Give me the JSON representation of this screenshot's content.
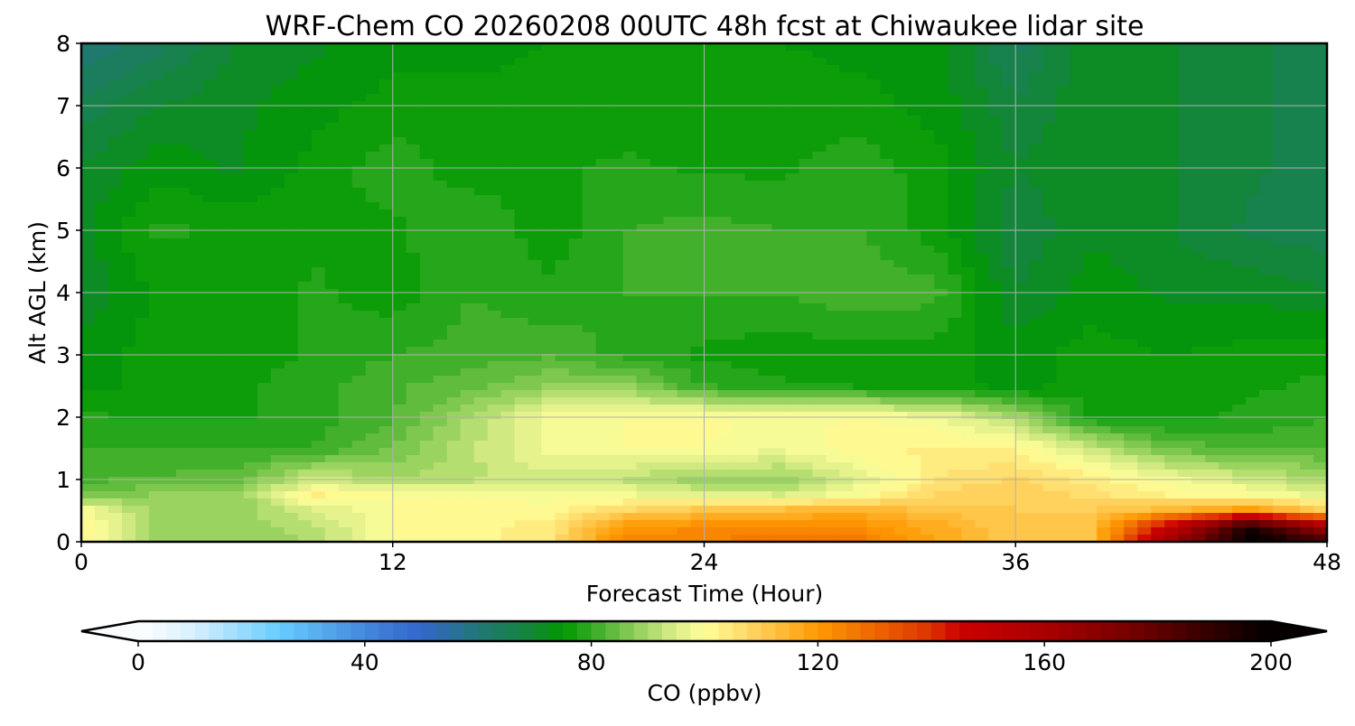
{
  "chart_data": {
    "type": "heatmap",
    "title": "WRF-Chem CO  20260208 00UTC 48h fcst at Chiwaukee lidar site",
    "xlabel": "Forecast Time (Hour)",
    "ylabel": "Alt AGL (km)",
    "xlim": [
      0,
      48
    ],
    "ylim": [
      0,
      8
    ],
    "xticks": [
      "0",
      "12",
      "24",
      "36",
      "48"
    ],
    "yticks": [
      "0",
      "1",
      "2",
      "3",
      "4",
      "5",
      "6",
      "7",
      "8"
    ],
    "grid": true,
    "x": [
      0,
      3,
      6,
      9,
      12,
      15,
      18,
      21,
      24,
      27,
      30,
      33,
      36,
      39,
      42,
      45,
      48
    ],
    "y": [
      0,
      0.25,
      0.5,
      0.75,
      1,
      1.5,
      2,
      2.5,
      3,
      4,
      5,
      6,
      7,
      8
    ],
    "z": [
      [
        104,
        88,
        88,
        90,
        100,
        101,
        105,
        125,
        125,
        127,
        126,
        118,
        110,
        112,
        165,
        200,
        190
      ],
      [
        102,
        88,
        88,
        92,
        100,
        101,
        104,
        120,
        122,
        123,
        122,
        116,
        110,
        112,
        150,
        195,
        160
      ],
      [
        100,
        88,
        88,
        95,
        100,
        101,
        101,
        108,
        112,
        114,
        115,
        112,
        110,
        110,
        115,
        120,
        110
      ],
      [
        85,
        88,
        88,
        103,
        100,
        100,
        99,
        98,
        96,
        95,
        100,
        108,
        110,
        106,
        102,
        100,
        96
      ],
      [
        82,
        83,
        84,
        94,
        90,
        92,
        94,
        92,
        88,
        88,
        95,
        105,
        108,
        104,
        98,
        94,
        90
      ],
      [
        80,
        80,
        80,
        80,
        85,
        92,
        98,
        100,
        100,
        98,
        102,
        103,
        102,
        93,
        84,
        82,
        82
      ],
      [
        78,
        77,
        77,
        79,
        82,
        90,
        99,
        100,
        101,
        99,
        100,
        98,
        90,
        77,
        77,
        78,
        80
      ],
      [
        74,
        76,
        77,
        79,
        82,
        84,
        88,
        88,
        80,
        78,
        77,
        76,
        74,
        76,
        76,
        77,
        78
      ],
      [
        74,
        76,
        76,
        78,
        80,
        81,
        82,
        79,
        77,
        76,
        76,
        76,
        74,
        76,
        75,
        76,
        77
      ],
      [
        70,
        76,
        75,
        78,
        76,
        80,
        78,
        80,
        80,
        80,
        82,
        81,
        70,
        74,
        72,
        72,
        70
      ],
      [
        72,
        78,
        77,
        77,
        77,
        80,
        76,
        80,
        81,
        80,
        80,
        76,
        68,
        72,
        70,
        67,
        66
      ],
      [
        70,
        74,
        72,
        76,
        79,
        76,
        77,
        78,
        77,
        77,
        79,
        76,
        70,
        72,
        70,
        68,
        66
      ],
      [
        66,
        70,
        72,
        74,
        76,
        76,
        76,
        76,
        76,
        77,
        76,
        74,
        68,
        72,
        70,
        68,
        66
      ],
      [
        60,
        64,
        70,
        72,
        74,
        74,
        75,
        75,
        75,
        75,
        74,
        74,
        64,
        72,
        70,
        68,
        66
      ]
    ],
    "colorbar": {
      "label": "CO  (ppbv)",
      "range": [
        0,
        200
      ],
      "step": 2.5,
      "ticks": [
        "0",
        "40",
        "80",
        "120",
        "160",
        "200"
      ],
      "extend": "both",
      "stops": [
        [
          0,
          "#ffffff"
        ],
        [
          10,
          "#d6f0ff"
        ],
        [
          25,
          "#66ccff"
        ],
        [
          40,
          "#4488dd"
        ],
        [
          50,
          "#3366cc"
        ],
        [
          60,
          "#227777"
        ],
        [
          70,
          "#118833"
        ],
        [
          75,
          "#009900"
        ],
        [
          80,
          "#33aa22"
        ],
        [
          87,
          "#88cc55"
        ],
        [
          95,
          "#ddee88"
        ],
        [
          100,
          "#ffff99"
        ],
        [
          110,
          "#ffcc55"
        ],
        [
          120,
          "#ff9900"
        ],
        [
          130,
          "#ee6600"
        ],
        [
          140,
          "#dd3300"
        ],
        [
          145,
          "#cc0000"
        ],
        [
          160,
          "#aa0000"
        ],
        [
          175,
          "#770000"
        ],
        [
          200,
          "#000000"
        ]
      ]
    }
  }
}
